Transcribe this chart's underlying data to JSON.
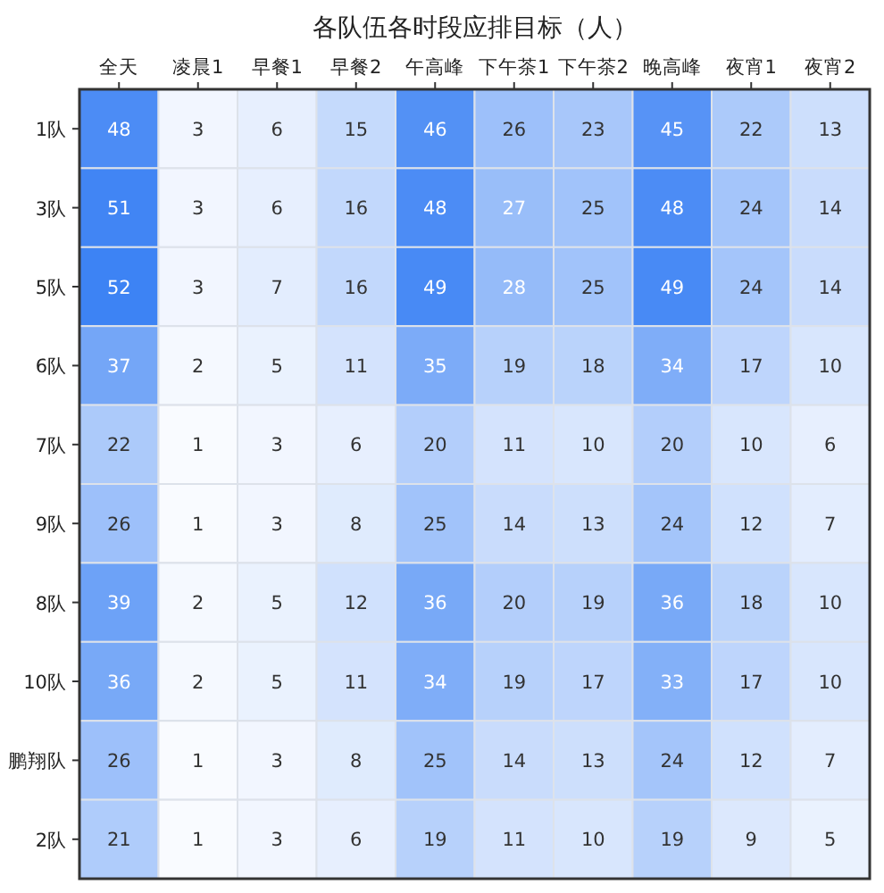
{
  "chart_data": {
    "type": "heatmap",
    "title": "各队伍各时段应排目标（人）",
    "categories": [
      "全天",
      "凌晨1",
      "早餐1",
      "早餐2",
      "午高峰",
      "下午茶1",
      "下午茶2",
      "晚高峰",
      "夜宵1",
      "夜宵2"
    ],
    "y_categories": [
      "1队",
      "3队",
      "5队",
      "6队",
      "7队",
      "9队",
      "8队",
      "10队",
      "鹏翔队",
      "2队"
    ],
    "cells": [
      [
        48,
        3,
        6,
        15,
        46,
        26,
        23,
        45,
        22,
        13
      ],
      [
        51,
        3,
        6,
        16,
        48,
        27,
        25,
        48,
        24,
        14
      ],
      [
        52,
        3,
        7,
        16,
        49,
        28,
        25,
        49,
        24,
        14
      ],
      [
        37,
        2,
        5,
        11,
        35,
        19,
        18,
        34,
        17,
        10
      ],
      [
        22,
        1,
        3,
        6,
        20,
        11,
        10,
        20,
        10,
        6
      ],
      [
        26,
        1,
        3,
        8,
        25,
        14,
        13,
        24,
        12,
        7
      ],
      [
        39,
        2,
        5,
        12,
        36,
        20,
        19,
        36,
        18,
        10
      ],
      [
        36,
        2,
        5,
        11,
        34,
        19,
        17,
        33,
        17,
        10
      ],
      [
        26,
        1,
        3,
        8,
        25,
        14,
        13,
        24,
        12,
        7
      ],
      [
        21,
        1,
        3,
        6,
        19,
        11,
        10,
        19,
        9,
        5
      ]
    ],
    "data_labels": true
  }
}
